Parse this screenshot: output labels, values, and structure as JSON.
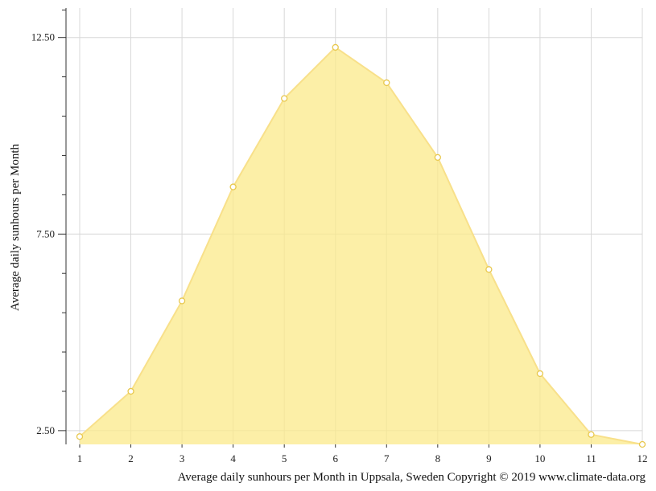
{
  "chart_data": {
    "type": "area",
    "title": "",
    "caption": "Average daily sunhours per Month in Uppsala, Sweden Copyright © 2019 www.climate-data.org",
    "xlabel": "",
    "ylabel": "Average daily sunhours per Month",
    "x": [
      1,
      2,
      3,
      4,
      5,
      6,
      7,
      8,
      9,
      10,
      11,
      12
    ],
    "x_tick_labels": [
      "1",
      "2",
      "3",
      "4",
      "5",
      "6",
      "7",
      "8",
      "9",
      "10",
      "11",
      "12"
    ],
    "y_tick_labels": [
      "2.50",
      "7.50",
      "12.50"
    ],
    "y_ticks": [
      2.5,
      7.5,
      12.5
    ],
    "y_minor_ticks": [
      3.5,
      4.5,
      5.5,
      6.5,
      8.5,
      9.5,
      10.5,
      11.5,
      13.2
    ],
    "ylim": [
      2.15,
      13.25
    ],
    "xlim": [
      0.73,
      12
    ],
    "grid": true,
    "legend": "none",
    "series": [
      {
        "values": [
          2.35,
          3.5,
          5.8,
          8.7,
          10.95,
          12.25,
          11.35,
          9.45,
          6.6,
          3.95,
          2.4,
          2.15
        ],
        "color": "#fbe98a",
        "line_color": "#f8e08a",
        "marker_stroke": "#e8c84e"
      }
    ]
  }
}
